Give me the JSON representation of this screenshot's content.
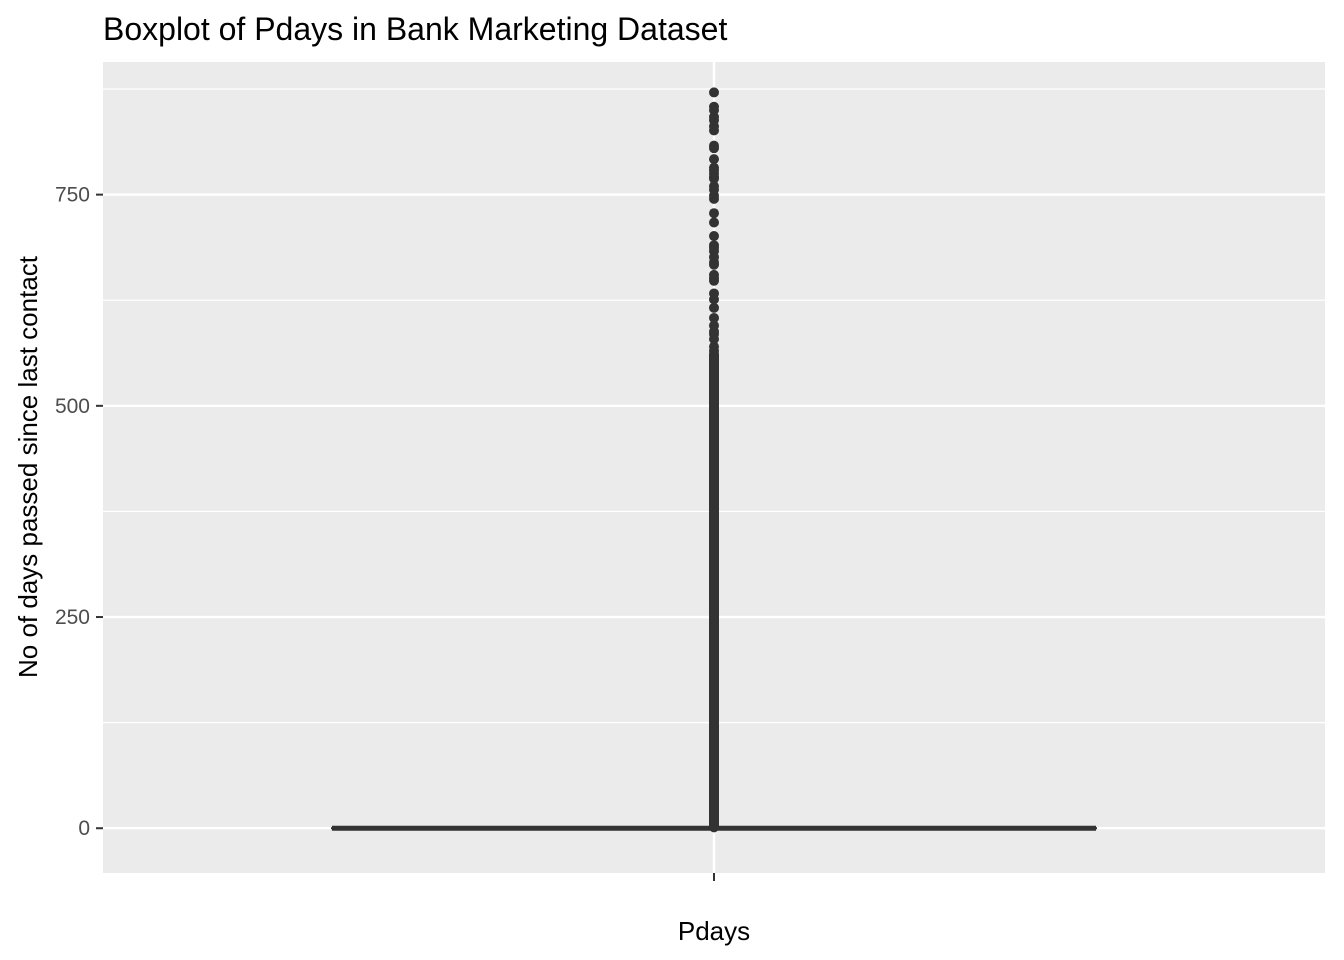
{
  "chart_data": {
    "type": "boxplot",
    "title": "Boxplot of Pdays in Bank Marketing Dataset",
    "xlabel": "Pdays",
    "ylabel": "No of days passed since last contact",
    "categories": [
      ""
    ],
    "ylim": [
      -53,
      907
    ],
    "y_major_ticks": [
      0,
      250,
      500,
      750
    ],
    "y_tick_labels": [
      "0",
      "250",
      "500",
      "750"
    ],
    "grid": true,
    "legend": "none",
    "box": {
      "min": 0,
      "q1": 0,
      "median": 0,
      "q3": 0,
      "max": 0
    },
    "outlier_dense_range": [
      1,
      561
    ],
    "outliers": [
      871,
      854,
      850,
      842,
      838,
      831,
      826,
      808,
      805,
      792,
      782,
      779,
      775,
      771,
      769,
      760,
      756,
      749,
      745,
      728,
      717,
      701,
      690,
      687,
      683,
      676,
      670,
      667,
      655,
      651,
      648,
      633,
      626,
      616,
      604,
      595,
      588,
      585,
      579,
      570,
      565
    ],
    "colors": {
      "panel": "#ebebeb",
      "grid": "#ffffff",
      "mark": "#333333"
    }
  }
}
